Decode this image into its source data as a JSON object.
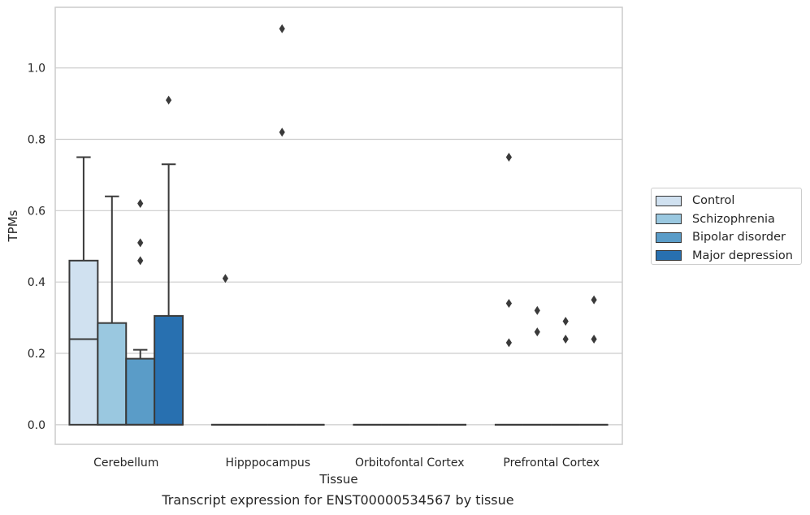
{
  "chart_data": {
    "type": "box",
    "xlabel": "Tissue",
    "ylabel": "TPMs",
    "caption": "Transcript expression for ENST00000534567 by tissue",
    "categories": [
      "Cerebellum",
      "Hipppocampus",
      "Orbitofontal Cortex",
      "Prefrontal Cortex"
    ],
    "ylim": [
      -0.055,
      1.17
    ],
    "yticks": [
      0.0,
      0.2,
      0.4,
      0.6,
      0.8,
      1.0
    ],
    "ytick_labels": [
      "0.0",
      "0.2",
      "0.4",
      "0.6",
      "0.8",
      "1.0"
    ],
    "grid": "horizontal",
    "legend_position": "right",
    "series": [
      {
        "name": "Control",
        "color": "#d0e1f0",
        "boxes": [
          {
            "q1": 0.0,
            "median": 0.24,
            "q3": 0.46,
            "whislo": 0.0,
            "whishi": 0.75,
            "fliers": []
          },
          {
            "q1": 0.0,
            "median": 0.0,
            "q3": 0.0,
            "whislo": 0.0,
            "whishi": 0.0,
            "fliers": [
              0.41
            ]
          },
          {
            "q1": 0.0,
            "median": 0.0,
            "q3": 0.0,
            "whislo": 0.0,
            "whishi": 0.0,
            "fliers": []
          },
          {
            "q1": 0.0,
            "median": 0.0,
            "q3": 0.0,
            "whislo": 0.0,
            "whishi": 0.0,
            "fliers": [
              0.75,
              0.34,
              0.23
            ]
          }
        ]
      },
      {
        "name": "Schizophrenia",
        "color": "#9ac8e0",
        "boxes": [
          {
            "q1": 0.0,
            "median": 0.0,
            "q3": 0.285,
            "whislo": 0.0,
            "whishi": 0.64,
            "fliers": []
          },
          {
            "q1": 0.0,
            "median": 0.0,
            "q3": 0.0,
            "whislo": 0.0,
            "whishi": 0.0,
            "fliers": []
          },
          {
            "q1": 0.0,
            "median": 0.0,
            "q3": 0.0,
            "whislo": 0.0,
            "whishi": 0.0,
            "fliers": []
          },
          {
            "q1": 0.0,
            "median": 0.0,
            "q3": 0.0,
            "whislo": 0.0,
            "whishi": 0.0,
            "fliers": [
              0.32,
              0.26
            ]
          }
        ]
      },
      {
        "name": "Bipolar disorder",
        "color": "#5a9cc8",
        "boxes": [
          {
            "q1": 0.0,
            "median": 0.0,
            "q3": 0.185,
            "whislo": 0.0,
            "whishi": 0.21,
            "fliers": [
              0.62,
              0.51,
              0.46
            ]
          },
          {
            "q1": 0.0,
            "median": 0.0,
            "q3": 0.0,
            "whislo": 0.0,
            "whishi": 0.0,
            "fliers": [
              1.11,
              0.82
            ]
          },
          {
            "q1": 0.0,
            "median": 0.0,
            "q3": 0.0,
            "whislo": 0.0,
            "whishi": 0.0,
            "fliers": []
          },
          {
            "q1": 0.0,
            "median": 0.0,
            "q3": 0.0,
            "whislo": 0.0,
            "whishi": 0.0,
            "fliers": [
              0.29,
              0.24
            ]
          }
        ]
      },
      {
        "name": "Major depression",
        "color": "#2870b0",
        "boxes": [
          {
            "q1": 0.0,
            "median": 0.0,
            "q3": 0.305,
            "whislo": 0.0,
            "whishi": 0.73,
            "fliers": [
              0.91
            ]
          },
          {
            "q1": 0.0,
            "median": 0.0,
            "q3": 0.0,
            "whislo": 0.0,
            "whishi": 0.0,
            "fliers": []
          },
          {
            "q1": 0.0,
            "median": 0.0,
            "q3": 0.0,
            "whislo": 0.0,
            "whishi": 0.0,
            "fliers": []
          },
          {
            "q1": 0.0,
            "median": 0.0,
            "q3": 0.0,
            "whislo": 0.0,
            "whishi": 0.0,
            "fliers": [
              0.35,
              0.24
            ]
          }
        ]
      }
    ]
  }
}
